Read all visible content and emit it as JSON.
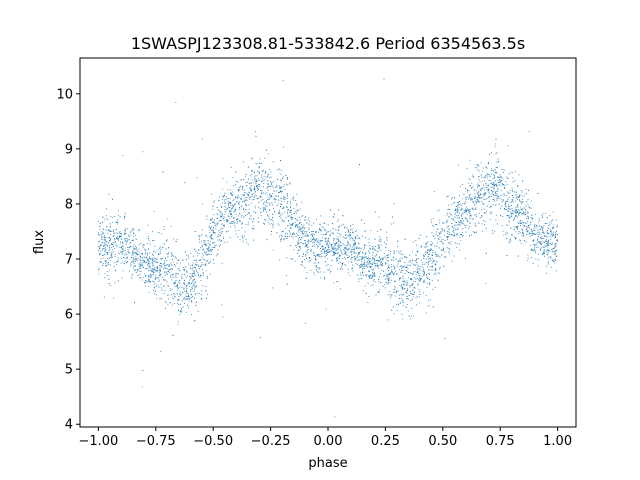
{
  "chart_data": {
    "type": "scatter",
    "title": "1SWASPJ123308.81-533842.6 Period 6354563.5s",
    "xlabel": "phase",
    "ylabel": "flux",
    "xlim": [
      -1.08,
      1.08
    ],
    "ylim": [
      3.95,
      10.65
    ],
    "x_ticks": [
      -1.0,
      -0.75,
      -0.5,
      -0.25,
      0.0,
      0.25,
      0.5,
      0.75,
      1.0
    ],
    "x_tick_labels": [
      "−1.00",
      "−0.75",
      "−0.50",
      "−0.25",
      "0.00",
      "0.25",
      "0.50",
      "0.75",
      "1.00"
    ],
    "y_ticks": [
      4,
      5,
      6,
      7,
      8,
      9,
      10
    ],
    "y_tick_labels": [
      "4",
      "5",
      "6",
      "7",
      "8",
      "9",
      "10"
    ],
    "grid": false,
    "marker_color": "#1f77b4",
    "series": [
      {
        "x": [
          -1.0,
          -0.95,
          -0.9,
          -0.85,
          -0.8,
          -0.75,
          -0.7,
          -0.65,
          -0.6,
          -0.55,
          -0.5,
          -0.45,
          -0.4,
          -0.35,
          -0.3,
          -0.25,
          -0.2,
          -0.15,
          -0.1,
          -0.05,
          0.0,
          0.05,
          0.1,
          0.15,
          0.2,
          0.25,
          0.3,
          0.35,
          0.4,
          0.45,
          0.5,
          0.55,
          0.6,
          0.65,
          0.7,
          0.75,
          0.8,
          0.85,
          0.9,
          0.95,
          1.0
        ],
        "y": [
          7.3,
          7.2,
          7.3,
          7.1,
          6.9,
          6.9,
          6.8,
          6.5,
          6.6,
          6.9,
          7.5,
          7.8,
          7.9,
          8.1,
          8.3,
          8.1,
          8.0,
          7.6,
          7.3,
          7.2,
          7.3,
          7.2,
          7.2,
          7.0,
          6.9,
          6.9,
          6.7,
          6.6,
          6.7,
          7.0,
          7.4,
          7.7,
          7.9,
          8.1,
          8.3,
          8.2,
          8.0,
          7.7,
          7.4,
          7.3,
          7.3
        ],
        "spread": [
          0.45,
          0.55,
          0.45,
          0.4,
          0.4,
          0.5,
          0.6,
          0.55,
          0.5,
          0.6,
          0.5,
          0.45,
          0.5,
          0.6,
          0.55,
          0.6,
          0.6,
          0.5,
          0.45,
          0.45,
          0.45,
          0.45,
          0.45,
          0.4,
          0.4,
          0.5,
          0.6,
          0.55,
          0.5,
          0.55,
          0.5,
          0.45,
          0.5,
          0.6,
          0.6,
          0.6,
          0.6,
          0.5,
          0.45,
          0.45,
          0.45
        ]
      }
    ]
  }
}
